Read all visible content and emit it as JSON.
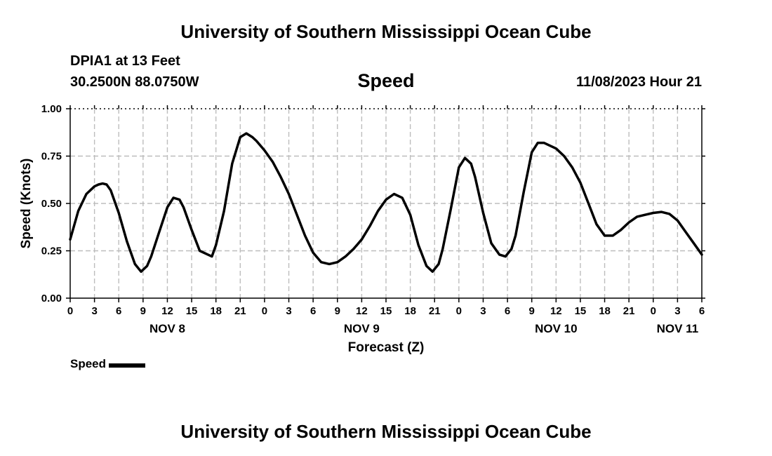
{
  "header": {
    "title": "University of Southern Mississippi Ocean Cube",
    "station": "DPIA1 at 13 Feet",
    "coords": "30.2500N  88.0750W",
    "subtitle": "Speed",
    "datetime": "11/08/2023 Hour 21"
  },
  "footer": {
    "title": "University of Southern Mississippi Ocean Cube"
  },
  "legend": {
    "label": "Speed",
    "color": "#000000"
  },
  "chart_data": {
    "type": "line",
    "title": "Speed",
    "xlabel": "Forecast (Z)",
    "ylabel": "Speed (Knots)",
    "xlim": [
      0,
      78
    ],
    "ylim": [
      0,
      1
    ],
    "yticks": [
      0,
      0.25,
      0.5,
      0.75,
      1.0
    ],
    "ytick_labels": [
      "0.00",
      "0.25",
      "0.50",
      "0.75",
      "1.00"
    ],
    "xticks": [
      0,
      3,
      6,
      9,
      12,
      15,
      18,
      21,
      24,
      27,
      30,
      33,
      36,
      39,
      42,
      45,
      48,
      51,
      54,
      57,
      60,
      63,
      66,
      69,
      72,
      75,
      78
    ],
    "xtick_labels": [
      "0",
      "3",
      "6",
      "9",
      "12",
      "15",
      "18",
      "21",
      "0",
      "3",
      "6",
      "9",
      "12",
      "15",
      "18",
      "21",
      "0",
      "3",
      "6",
      "9",
      "12",
      "15",
      "18",
      "21",
      "0",
      "3",
      "6"
    ],
    "date_labels": [
      {
        "label": "NOV 8",
        "x": 12
      },
      {
        "label": "NOV 9",
        "x": 36
      },
      {
        "label": "NOV 10",
        "x": 60
      },
      {
        "label": "NOV 11",
        "x": 75
      }
    ],
    "grid": true,
    "series": [
      {
        "name": "Speed",
        "color": "#000000",
        "x": [
          0,
          1,
          2,
          3,
          3.5,
          4,
          4.5,
          5,
          6,
          7,
          8,
          8.75,
          9.5,
          10,
          11,
          12,
          12.75,
          13.5,
          14,
          15,
          16,
          17,
          17.5,
          18,
          19,
          20,
          21,
          21.75,
          22.5,
          23,
          24,
          25,
          26,
          27,
          28,
          29,
          30,
          31,
          32,
          32.5,
          33,
          34,
          35,
          36,
          37,
          38,
          39,
          40,
          41,
          42,
          43,
          44,
          44.75,
          45.5,
          46,
          47,
          48,
          48.75,
          49.5,
          50,
          51,
          52,
          53,
          53.75,
          54.5,
          55,
          56,
          57,
          57.75,
          58.5,
          59,
          60,
          61,
          62,
          63,
          64,
          65,
          66,
          67,
          68,
          69,
          70,
          71,
          72,
          73,
          74,
          75,
          76,
          77,
          78
        ],
        "values": [
          0.31,
          0.46,
          0.55,
          0.59,
          0.6,
          0.605,
          0.6,
          0.57,
          0.45,
          0.3,
          0.18,
          0.14,
          0.17,
          0.22,
          0.35,
          0.48,
          0.53,
          0.52,
          0.48,
          0.36,
          0.25,
          0.23,
          0.22,
          0.28,
          0.46,
          0.71,
          0.85,
          0.87,
          0.85,
          0.83,
          0.78,
          0.72,
          0.64,
          0.55,
          0.44,
          0.33,
          0.24,
          0.19,
          0.18,
          0.185,
          0.19,
          0.22,
          0.26,
          0.31,
          0.38,
          0.46,
          0.52,
          0.55,
          0.53,
          0.44,
          0.28,
          0.17,
          0.14,
          0.18,
          0.26,
          0.47,
          0.69,
          0.74,
          0.71,
          0.64,
          0.45,
          0.29,
          0.23,
          0.22,
          0.26,
          0.33,
          0.56,
          0.77,
          0.82,
          0.82,
          0.81,
          0.79,
          0.75,
          0.69,
          0.61,
          0.5,
          0.39,
          0.33,
          0.33,
          0.36,
          0.4,
          0.43,
          0.44,
          0.45,
          0.455,
          0.445,
          0.41,
          0.35,
          0.29,
          0.23
        ]
      }
    ]
  }
}
